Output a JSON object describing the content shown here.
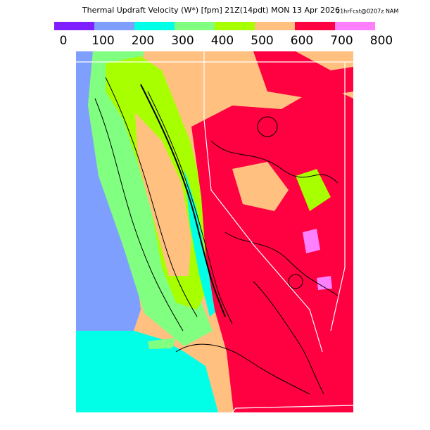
{
  "header": {
    "title": "Thermal Updraft Velocity (W*) [fpm] 21Z(14pdt) MON 13 Apr 2026",
    "subtitle": "21hrFcst@0207z NAM"
  },
  "legend": {
    "labels": [
      0,
      100,
      200,
      300,
      400,
      500,
      600,
      700,
      800
    ],
    "colors": [
      "#7f1fff",
      "#7f9fff",
      "#00ffe6",
      "#80ff80",
      "#a8ff00",
      "#ffc080",
      "#ff0040",
      "#ff80ff"
    ]
  }
}
